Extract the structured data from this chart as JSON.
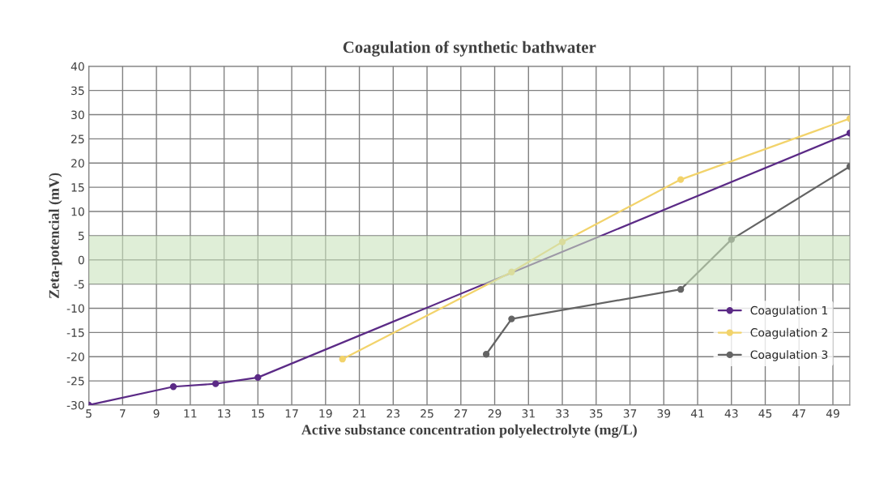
{
  "chart_data": {
    "type": "line",
    "title": "Coagulation of synthetic bathwater",
    "xlabel": "Active substance concentration polyelectrolyte (mg/L)",
    "ylabel": "Zeta-potencial (mV)",
    "xlim": [
      5,
      50
    ],
    "xticks": [
      5,
      7,
      9,
      11,
      13,
      15,
      17,
      19,
      21,
      23,
      25,
      27,
      29,
      31,
      33,
      35,
      37,
      39,
      41,
      43,
      45,
      47,
      49
    ],
    "ylim": [
      -30,
      40
    ],
    "yticks": [
      -30,
      -25,
      -20,
      -15,
      -10,
      -5,
      0,
      5,
      10,
      15,
      20,
      25,
      30,
      35,
      40
    ],
    "grid": true,
    "legend": "bottom right",
    "marker": "circle",
    "line_style": "solid",
    "bands": [
      {
        "axis": "y",
        "from": -5,
        "to": 5,
        "color": "#c9e3bd"
      }
    ],
    "series": [
      {
        "name": "Coagulation 1",
        "color": "#5b2a86",
        "x": [
          5,
          10,
          12.5,
          15,
          50
        ],
        "values": [
          -30,
          -26.2,
          -25.6,
          -24.3,
          26.2
        ]
      },
      {
        "name": "Coagulation 2",
        "color": "#f2d36b",
        "x": [
          20,
          30,
          33,
          40,
          50
        ],
        "values": [
          -20.5,
          -2.5,
          3.7,
          16.6,
          29.2
        ]
      },
      {
        "name": "Coagulation 3",
        "color": "#646464",
        "x": [
          28.5,
          30,
          40,
          43,
          50
        ],
        "values": [
          -19.5,
          -12.2,
          -6.1,
          4.2,
          19.3
        ]
      }
    ]
  }
}
